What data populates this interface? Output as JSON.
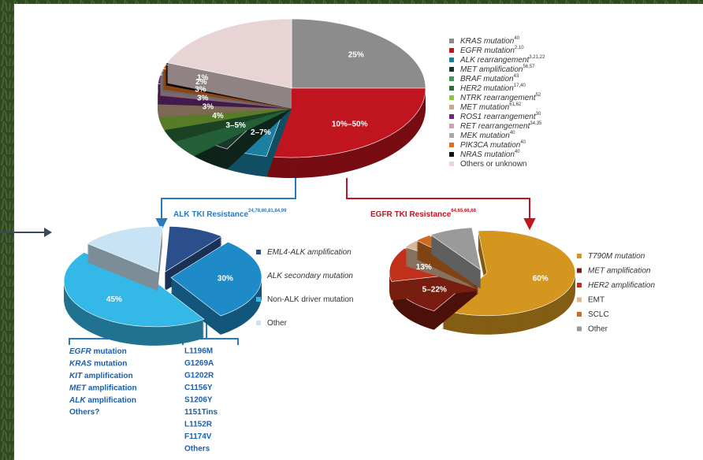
{
  "chart_data": [
    {
      "type": "pie",
      "categories": [
        "KRAS mutation",
        "EGFR mutation",
        "ALK rearrangement",
        "MET amplification",
        "BRAF mutation",
        "HER2 mutation",
        "NTRK rearrangement",
        "MET mutation",
        "ROS1 rearrangement",
        "RET rearrangement",
        "MEK mutation",
        "PIK3CA mutation",
        "NRAS mutation",
        "Others or unknown"
      ],
      "category_refs": [
        "40",
        "2,10",
        "3,21,22",
        "56,57",
        "43",
        "17,40",
        "52",
        "61,62",
        "30",
        "34,35",
        "40",
        "40",
        "40",
        null
      ],
      "values": [
        25,
        28,
        5,
        5,
        4,
        3,
        3,
        3,
        2,
        1,
        0.5,
        1,
        0.5,
        19
      ],
      "value_labels": [
        "25%",
        "10%–50%",
        "2–7%",
        "3–5%",
        "4%",
        "3%",
        "3%",
        "3%",
        "2%",
        "1%",
        null,
        null,
        null,
        null
      ],
      "colors": [
        "#8c8c8c",
        "#c0141e",
        "#1a7fa0",
        "#17382a",
        "#3a9a5a",
        "#2d6b3c",
        "#8cc63e",
        "#c8a888",
        "#6a2a7a",
        "#c9a4b4",
        "#a8a8a8",
        "#e07020",
        "#111111",
        "#e8d4d4"
      ]
    },
    {
      "type": "pie",
      "title": "ALK TKI Resistance",
      "title_refs": "24,78,80,81,84,99",
      "categories": [
        "EML4-ALK amplification",
        "ALK secondary mutation",
        "Non-ALK driver mutation",
        "Other"
      ],
      "values": [
        10,
        30,
        45,
        15
      ],
      "value_labels": [
        null,
        "30%",
        "45%",
        null
      ],
      "colors": [
        "#2a4f8a",
        "#1e8ac8",
        "#33b8e8",
        "#c8e4f4"
      ],
      "driver_list": [
        "EGFR mutation",
        "KRAS mutation",
        "KIT amplification",
        "MET amplification",
        "ALK amplification",
        "Others?"
      ],
      "secondary_list": [
        "L1196M",
        "G1269A",
        "G1202R",
        "C1156Y",
        "S1206Y",
        "1151Tins",
        "L1152R",
        "F1174V",
        "Others"
      ]
    },
    {
      "type": "pie",
      "title": "EGFR TKI Resistance",
      "title_refs": "64,65,66,68",
      "categories": [
        "T790M mutation",
        "MET amplification",
        "HER2 amplification",
        "EMT",
        "SCLC",
        "Other"
      ],
      "values": [
        60,
        13,
        13,
        3,
        3,
        8
      ],
      "value_labels": [
        "60%",
        "5–22%",
        "13%",
        null,
        null,
        null
      ],
      "colors": [
        "#d4961e",
        "#7a1a10",
        "#c0301a",
        "#d8b898",
        "#d06a20",
        "#9a9a9a"
      ]
    }
  ]
}
